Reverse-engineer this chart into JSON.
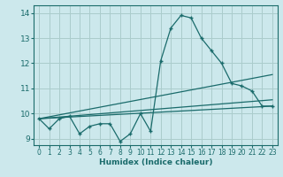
{
  "xlabel": "Humidex (Indice chaleur)",
  "bg_color": "#cce8ec",
  "grid_color": "#aacccc",
  "line_color": "#1a6b6b",
  "xlim": [
    -0.5,
    23.5
  ],
  "ylim": [
    8.75,
    14.3
  ],
  "xticks": [
    0,
    1,
    2,
    3,
    4,
    5,
    6,
    7,
    8,
    9,
    10,
    11,
    12,
    13,
    14,
    15,
    16,
    17,
    18,
    19,
    20,
    21,
    22,
    23
  ],
  "yticks": [
    9,
    10,
    11,
    12,
    13,
    14
  ],
  "series1_x": [
    0,
    1,
    2,
    3,
    4,
    5,
    6,
    7,
    8,
    9,
    10,
    11,
    12,
    13,
    14,
    15,
    16,
    17,
    18,
    19,
    20,
    21,
    22,
    23
  ],
  "series1_y": [
    9.8,
    9.4,
    9.8,
    9.9,
    9.2,
    9.5,
    9.6,
    9.6,
    8.9,
    9.2,
    10.0,
    9.3,
    12.1,
    13.4,
    13.9,
    13.8,
    13.0,
    12.5,
    12.0,
    11.2,
    11.1,
    10.9,
    10.3,
    10.3
  ],
  "trend1_x": [
    0,
    23
  ],
  "trend1_y": [
    9.8,
    10.3
  ],
  "trend2_x": [
    0,
    23
  ],
  "trend2_y": [
    9.8,
    10.55
  ],
  "trend3_x": [
    0,
    23
  ],
  "trend3_y": [
    9.8,
    11.55
  ]
}
